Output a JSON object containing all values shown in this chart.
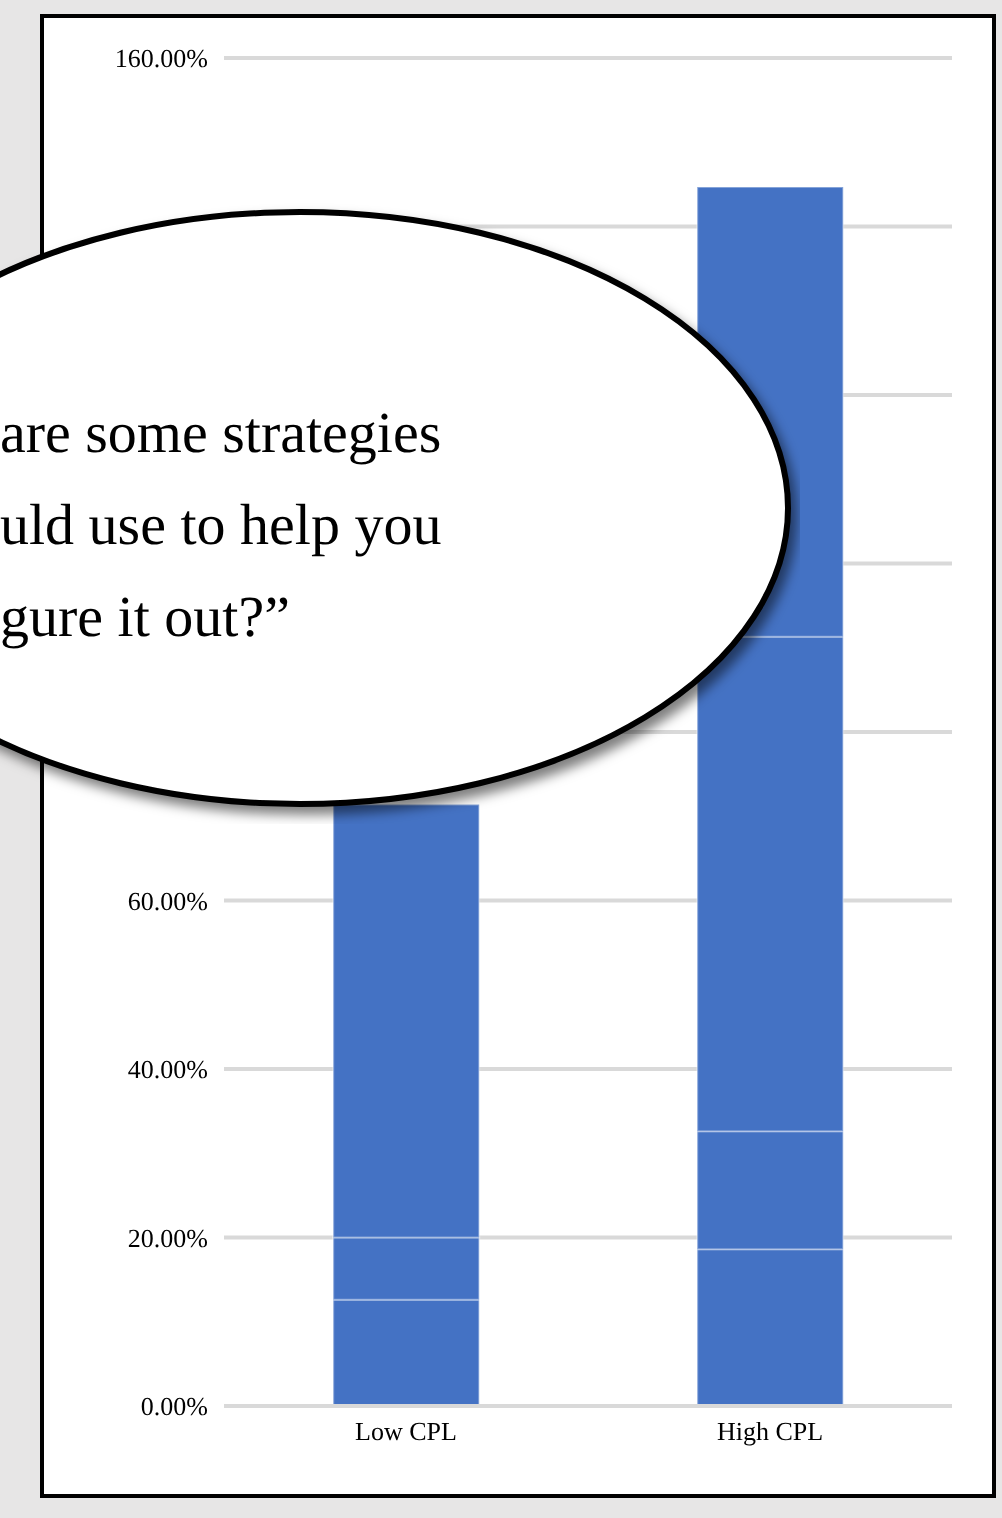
{
  "chart_data": {
    "type": "bar",
    "stacked": true,
    "categories": [
      "Low CPL",
      "High CPL"
    ],
    "series": [
      {
        "color": "#4472c4",
        "values": [
          12.6,
          18.6
        ]
      },
      {
        "color": "#4472c4",
        "values": [
          7.4,
          14
        ]
      },
      {
        "color": "#4472c4",
        "values": [
          51.4,
          58.7
        ]
      },
      {
        "color": "#4472c4",
        "values": [
          null,
          53.4
        ]
      }
    ],
    "ylim": [
      0,
      160
    ],
    "yticks": [
      {
        "value": 0,
        "label": "0.00%"
      },
      {
        "value": 20,
        "label": "20.00%"
      },
      {
        "value": 40,
        "label": "40.00%"
      },
      {
        "value": 60,
        "label": "60.00%"
      },
      {
        "value": 80,
        "label": null
      },
      {
        "value": 100,
        "label": null
      },
      {
        "value": 120,
        "label": null
      },
      {
        "value": 140,
        "label": null
      },
      {
        "value": 160,
        "label": "160.00%"
      }
    ],
    "grid": "y",
    "annotations": [
      "are some strategies",
      "uld use to help you",
      "gure it out?”"
    ]
  }
}
